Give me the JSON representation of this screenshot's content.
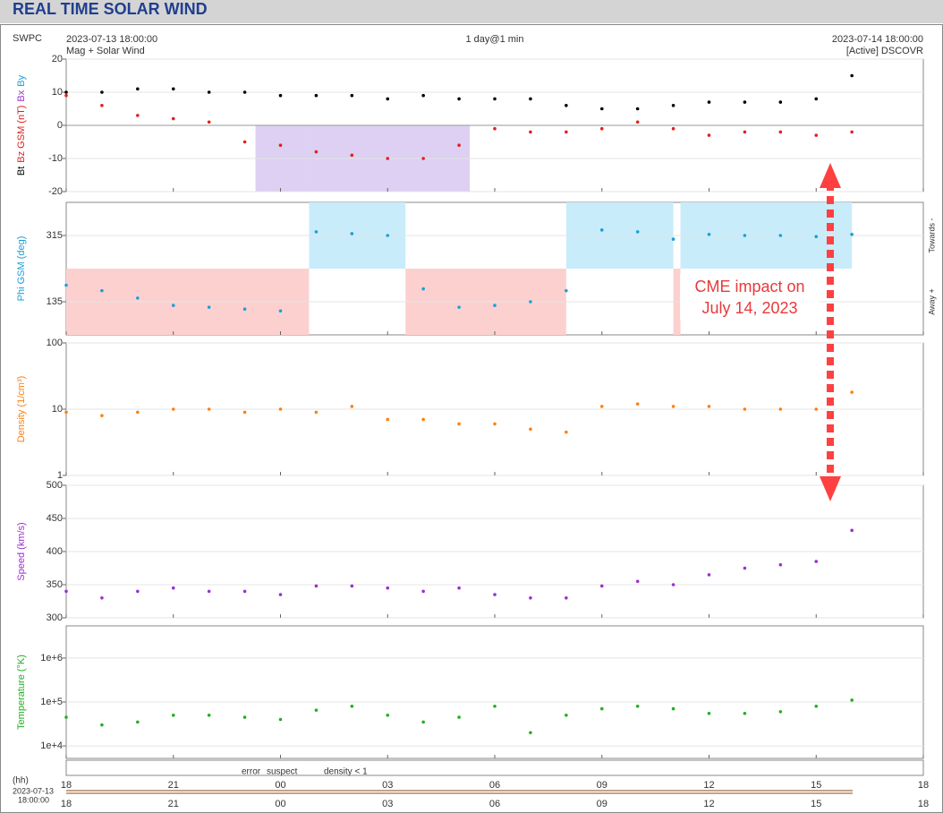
{
  "header": {
    "title": "REAL TIME SOLAR WIND",
    "source": "SWPC",
    "start": "2023-07-13 18:00:00",
    "subtitle": "Mag + Solar Wind",
    "resolution": "1 day@1 min",
    "end": "2023-07-14 18:00:00",
    "spacecraft": "[Active] DSCOVR"
  },
  "x_axis": {
    "xlim": [
      0,
      24
    ],
    "xticks": [
      {
        "value": 0,
        "label": "18"
      },
      {
        "value": 3,
        "label": "21"
      },
      {
        "value": 6,
        "label": "00"
      },
      {
        "value": 9,
        "label": "03"
      },
      {
        "value": 12,
        "label": "06"
      },
      {
        "value": 15,
        "label": "09"
      },
      {
        "value": 18,
        "label": "12"
      },
      {
        "value": 21,
        "label": "15"
      },
      {
        "value": 24,
        "label": "18"
      }
    ],
    "unit_label": "(hh)",
    "date": "2023-07-13",
    "time": "18:00:00"
  },
  "annotation": [
    "CME impact on",
    "July 14, 2023"
  ],
  "quality_legend": [
    {
      "name": "error",
      "color": "#e02020"
    },
    {
      "name": "suspect",
      "color": "#e8c000"
    },
    {
      "name": "density < 1",
      "color": "#ff8c00"
    }
  ],
  "chart_data": [
    {
      "type": "scatter",
      "ylabels": [
        {
          "text": "Bt",
          "color": "#000000"
        },
        {
          "text": "Bz GSM (nT)",
          "color": "#e02020"
        },
        {
          "text": "Bx",
          "color": "#9b30d0"
        },
        {
          "text": "By",
          "color": "#1aa0d8"
        }
      ],
      "x": [
        0,
        1,
        2,
        3,
        4,
        5,
        6,
        7,
        8,
        9,
        10,
        11,
        12,
        13,
        14,
        15,
        16,
        17,
        18,
        19,
        20,
        21,
        22
      ],
      "ylim": [
        -20,
        20
      ],
      "yticks": [
        -20,
        -10,
        0,
        10,
        20
      ],
      "log": false,
      "bands": [
        {
          "x": [
            5.3,
            6.8
          ],
          "y": [
            -20,
            0
          ],
          "color": "#ddd0f2"
        },
        {
          "x": [
            6.8,
            11.3
          ],
          "y": [
            -20,
            0
          ],
          "color": "#ddd0f2"
        }
      ],
      "series": [
        {
          "name": "Bt",
          "color": "#000000",
          "values": [
            10,
            10,
            11,
            11,
            10,
            10,
            9,
            9,
            9,
            8,
            9,
            8,
            8,
            8,
            6,
            5,
            5,
            6,
            7,
            7,
            7,
            8,
            15
          ]
        },
        {
          "name": "Bz",
          "color": "#e02020",
          "values": [
            9,
            6,
            3,
            2,
            1,
            -5,
            -6,
            -8,
            -9,
            -10,
            -10,
            -6,
            -1,
            -2,
            -2,
            -1,
            1,
            -1,
            -3,
            -2,
            -2,
            -3,
            -2
          ]
        }
      ]
    },
    {
      "type": "scatter",
      "ylabels": [
        {
          "text": "Phi GSM (deg)",
          "color": "#1aa0d8"
        }
      ],
      "right_labels": [
        "Towards -",
        "Away +"
      ],
      "x": [
        0,
        1,
        2,
        3,
        4,
        5,
        6,
        7,
        8,
        9,
        10,
        11,
        12,
        13,
        14,
        15,
        16,
        17,
        18,
        19,
        20,
        21,
        22
      ],
      "ylim": [
        45,
        405
      ],
      "yticks": [
        135,
        315
      ],
      "log": false,
      "bands": [
        {
          "x": [
            0,
            6.8
          ],
          "y": [
            45,
            225
          ],
          "color": "#fdd0d0"
        },
        {
          "x": [
            6.8,
            9.5
          ],
          "y": [
            225,
            405
          ],
          "color": "#c8ecfa"
        },
        {
          "x": [
            9.5,
            14.0
          ],
          "y": [
            45,
            225
          ],
          "color": "#fdd0d0"
        },
        {
          "x": [
            14.0,
            17.0
          ],
          "y": [
            225,
            405
          ],
          "color": "#c8ecfa"
        },
        {
          "x": [
            17.0,
            17.2
          ],
          "y": [
            45,
            225
          ],
          "color": "#fdd0d0"
        },
        {
          "x": [
            17.2,
            22.0
          ],
          "y": [
            225,
            405
          ],
          "color": "#c8ecfa"
        }
      ],
      "series": [
        {
          "name": "Phi",
          "color": "#1aa0d8",
          "values": [
            180,
            165,
            145,
            125,
            120,
            115,
            110,
            325,
            320,
            315,
            170,
            120,
            125,
            135,
            165,
            330,
            325,
            305,
            318,
            315,
            315,
            312,
            318
          ]
        }
      ]
    },
    {
      "type": "scatter",
      "ylabels": [
        {
          "text": "Density (1/cm³)",
          "color": "#ff7f0e"
        }
      ],
      "x": [
        0,
        1,
        2,
        3,
        4,
        5,
        6,
        7,
        8,
        9,
        10,
        11,
        12,
        13,
        14,
        15,
        16,
        17,
        18,
        19,
        20,
        21,
        22
      ],
      "ylim": [
        1,
        100
      ],
      "yticks": [
        1,
        10,
        100
      ],
      "log": true,
      "series": [
        {
          "name": "Density",
          "color": "#ff7f0e",
          "values": [
            9,
            8,
            9,
            10,
            10,
            9,
            10,
            9,
            11,
            7,
            7,
            6,
            6,
            5,
            4.5,
            11,
            12,
            11,
            11,
            10,
            10,
            10,
            18
          ]
        }
      ]
    },
    {
      "type": "scatter",
      "ylabels": [
        {
          "text": "Speed (km/s)",
          "color": "#9b30d0"
        }
      ],
      "x": [
        0,
        1,
        2,
        3,
        4,
        5,
        6,
        7,
        8,
        9,
        10,
        11,
        12,
        13,
        14,
        15,
        16,
        17,
        18,
        19,
        20,
        21,
        22
      ],
      "ylim": [
        300,
        500
      ],
      "yticks": [
        300,
        350,
        400,
        450,
        500
      ],
      "log": false,
      "series": [
        {
          "name": "Speed",
          "color": "#9b30d0",
          "values": [
            340,
            330,
            340,
            345,
            340,
            340,
            335,
            348,
            348,
            345,
            340,
            345,
            335,
            330,
            330,
            348,
            355,
            350,
            365,
            375,
            380,
            385,
            432
          ]
        }
      ]
    },
    {
      "type": "scatter",
      "ylabels": [
        {
          "text": "Temperature (°K)",
          "color": "#20b020"
        }
      ],
      "x": [
        0,
        1,
        2,
        3,
        4,
        5,
        6,
        7,
        8,
        9,
        10,
        11,
        12,
        13,
        14,
        15,
        16,
        17,
        18,
        19,
        20,
        21,
        22
      ],
      "ylim": [
        5200,
        5400000
      ],
      "yticks": [
        {
          "value": 10000,
          "label": "1e+4"
        },
        {
          "value": 100000,
          "label": "1e+5"
        },
        {
          "value": 1000000,
          "label": "1e+6"
        }
      ],
      "log": true,
      "series": [
        {
          "name": "Temperature",
          "color": "#20b020",
          "values": [
            45000,
            30000,
            35000,
            50000,
            50000,
            45000,
            40000,
            65000,
            80000,
            50000,
            35000,
            45000,
            80000,
            20000,
            50000,
            70000,
            80000,
            70000,
            55000,
            55000,
            60000,
            80000,
            110000
          ]
        }
      ]
    }
  ]
}
